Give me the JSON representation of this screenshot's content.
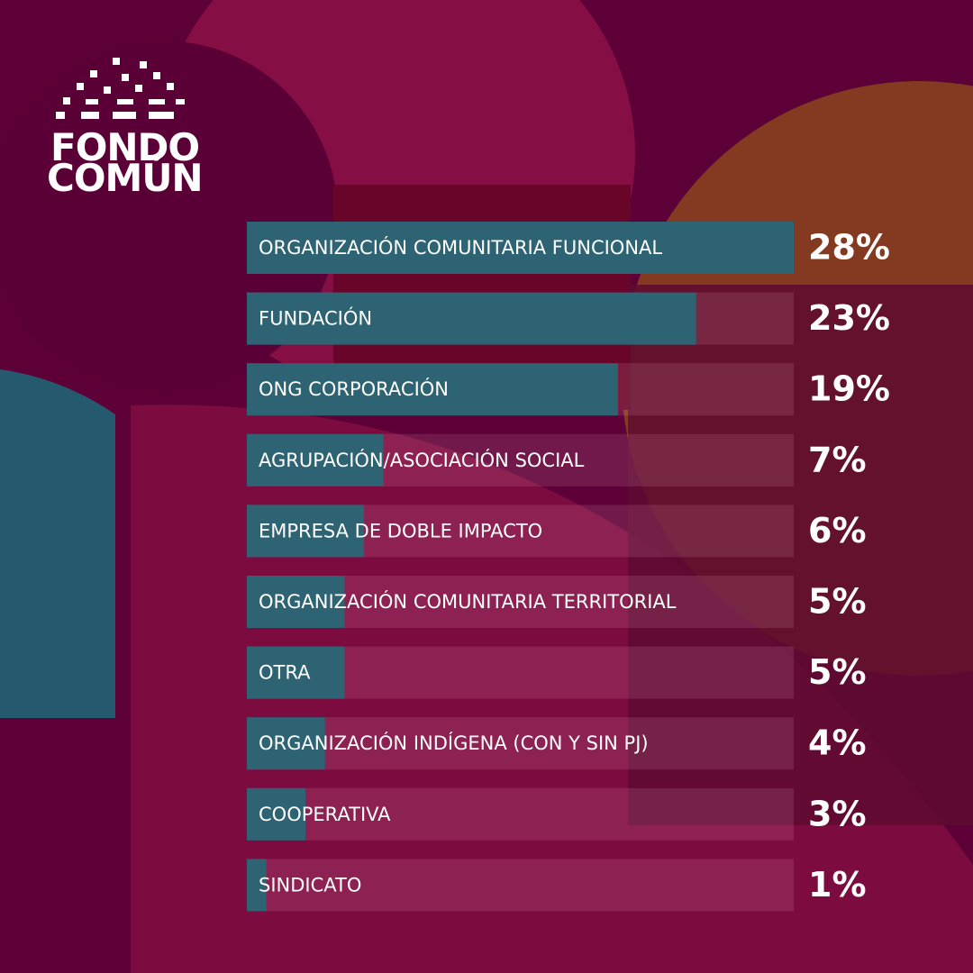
{
  "chart_data": {
    "type": "bar",
    "orientation": "horizontal",
    "logo_lines": [
      "FONDO",
      "COMÚN"
    ],
    "categories": [
      "ORGANIZACIÓN COMUNITARIA FUNCIONAL",
      "FUNDACIÓN",
      "ONG CORPORACIÓN",
      "AGRUPACIÓN/ASOCIACIÓN SOCIAL",
      "EMPRESA DE DOBLE IMPACTO",
      "ORGANIZACIÓN COMUNITARIA TERRITORIAL",
      "OTRA",
      "ORGANIZACIÓN INDÍGENA (CON Y SIN PJ)",
      "COOPERATIVA",
      "SINDICATO"
    ],
    "values": [
      28,
      23,
      19,
      7,
      6,
      5,
      5,
      4,
      3,
      1
    ],
    "value_labels": [
      "28%",
      "23%",
      "19%",
      "7%",
      "6%",
      "5%",
      "5%",
      "4%",
      "3%",
      "1%"
    ],
    "xlim": [
      0,
      28
    ],
    "color": "#2e6373"
  }
}
